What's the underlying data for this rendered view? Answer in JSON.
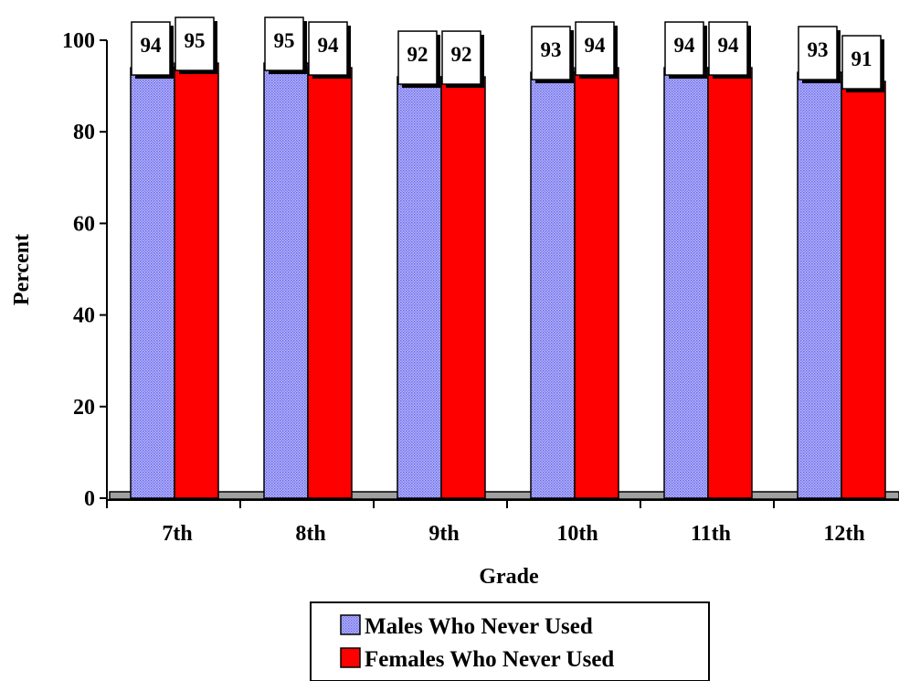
{
  "chart_data": {
    "type": "bar",
    "categories": [
      "7th",
      "8th",
      "9th",
      "10th",
      "11th",
      "12th"
    ],
    "series": [
      {
        "name": "Males Who Never Used",
        "values": [
          94,
          95,
          92,
          93,
          94,
          93
        ],
        "color": "#9999ff",
        "pattern": "fine-dots"
      },
      {
        "name": "Females Who Never Used",
        "values": [
          95,
          94,
          92,
          94,
          94,
          91
        ],
        "color": "#ff0000"
      }
    ],
    "xlabel": "Grade",
    "ylabel": "Percent",
    "ylim": [
      0,
      100
    ],
    "yticks": [
      "0",
      "20",
      "40",
      "60",
      "80",
      "100"
    ],
    "data_labels": true,
    "grid": false,
    "legend_position": "bottom"
  },
  "legend": {
    "items": [
      {
        "label": "Males Who Never Used"
      },
      {
        "label": "Females Who Never Used"
      }
    ]
  }
}
